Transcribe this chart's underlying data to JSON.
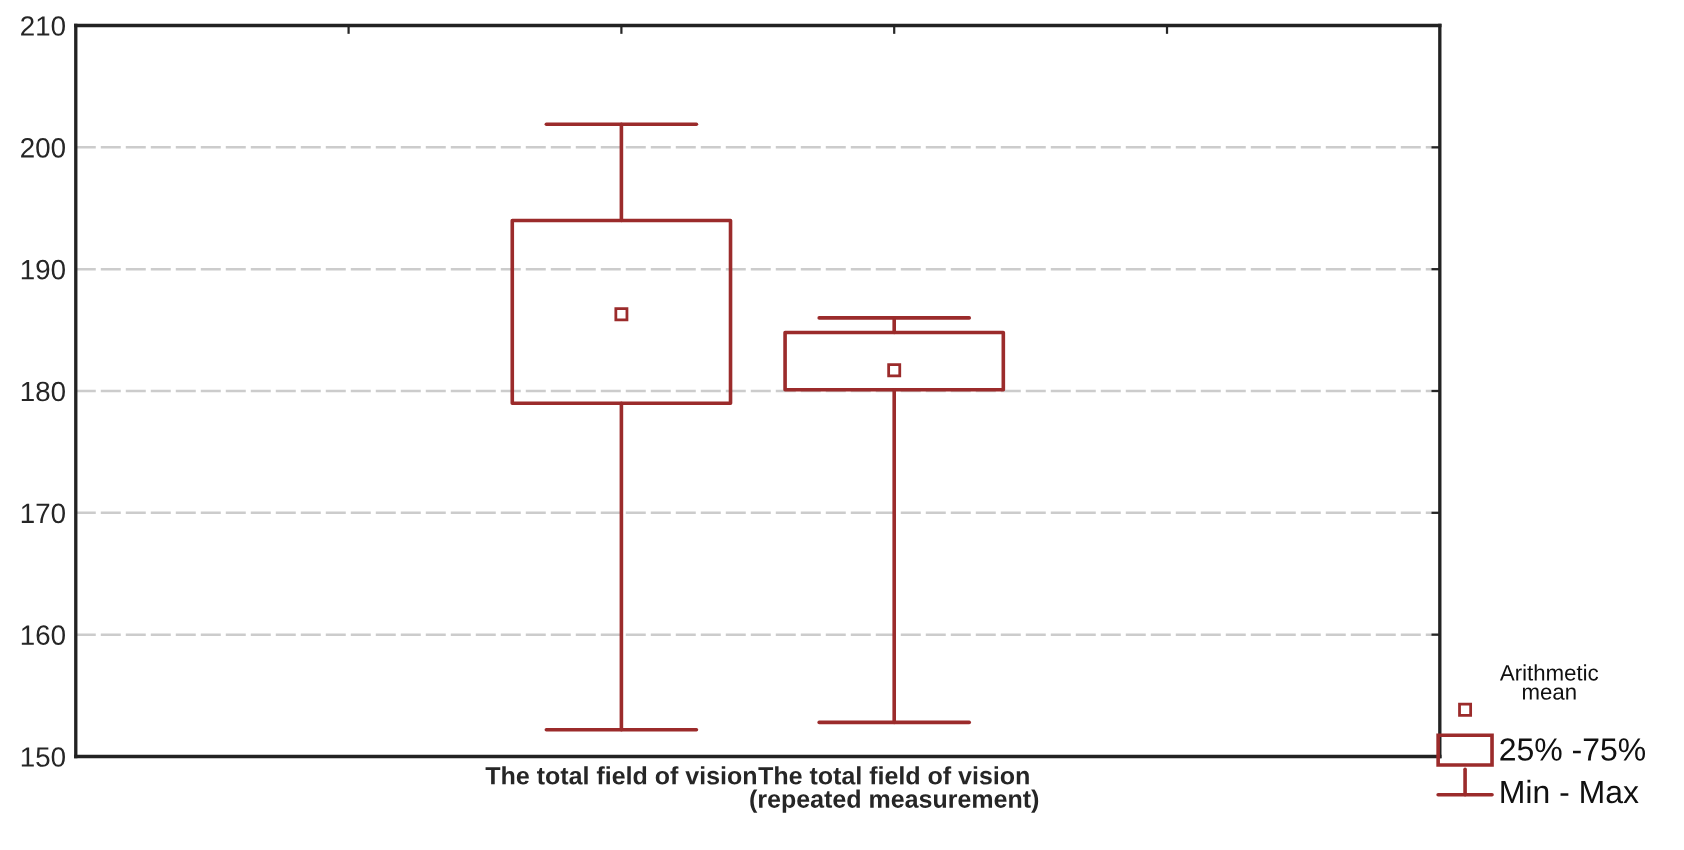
{
  "chart_data": {
    "type": "box",
    "categories": [
      null,
      "The total field of vision",
      "The total field of vision\n(repeated measurement)",
      null
    ],
    "series": [
      {
        "color": "#9b2b2b",
        "boxes": [
          null,
          {
            "low": 152.2,
            "q1": 179.0,
            "q3": 194.0,
            "high": 201.9,
            "mean": 186.3
          },
          {
            "low": 152.8,
            "q1": 180.1,
            "q3": 184.8,
            "high": 186.0,
            "mean": 181.7
          },
          null
        ]
      }
    ],
    "ylim": [
      150,
      210
    ],
    "yticks": [
      150,
      160,
      170,
      180,
      190,
      200,
      210
    ],
    "grid": "y",
    "annotations": [
      "Arithmetic\nmean",
      "25% -75%",
      "Min - Max"
    ]
  }
}
